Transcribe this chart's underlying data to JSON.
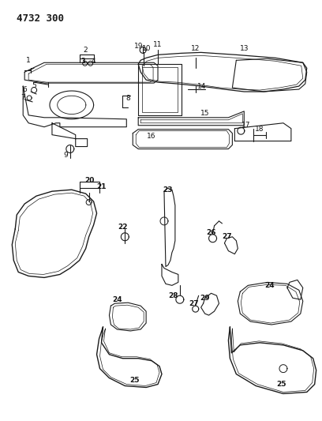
{
  "title": "4732 300",
  "bg_color": "#ffffff",
  "line_color": "#1a1a1a",
  "label_color": "#111111",
  "figsize": [
    4.08,
    5.33
  ],
  "dpi": 100
}
